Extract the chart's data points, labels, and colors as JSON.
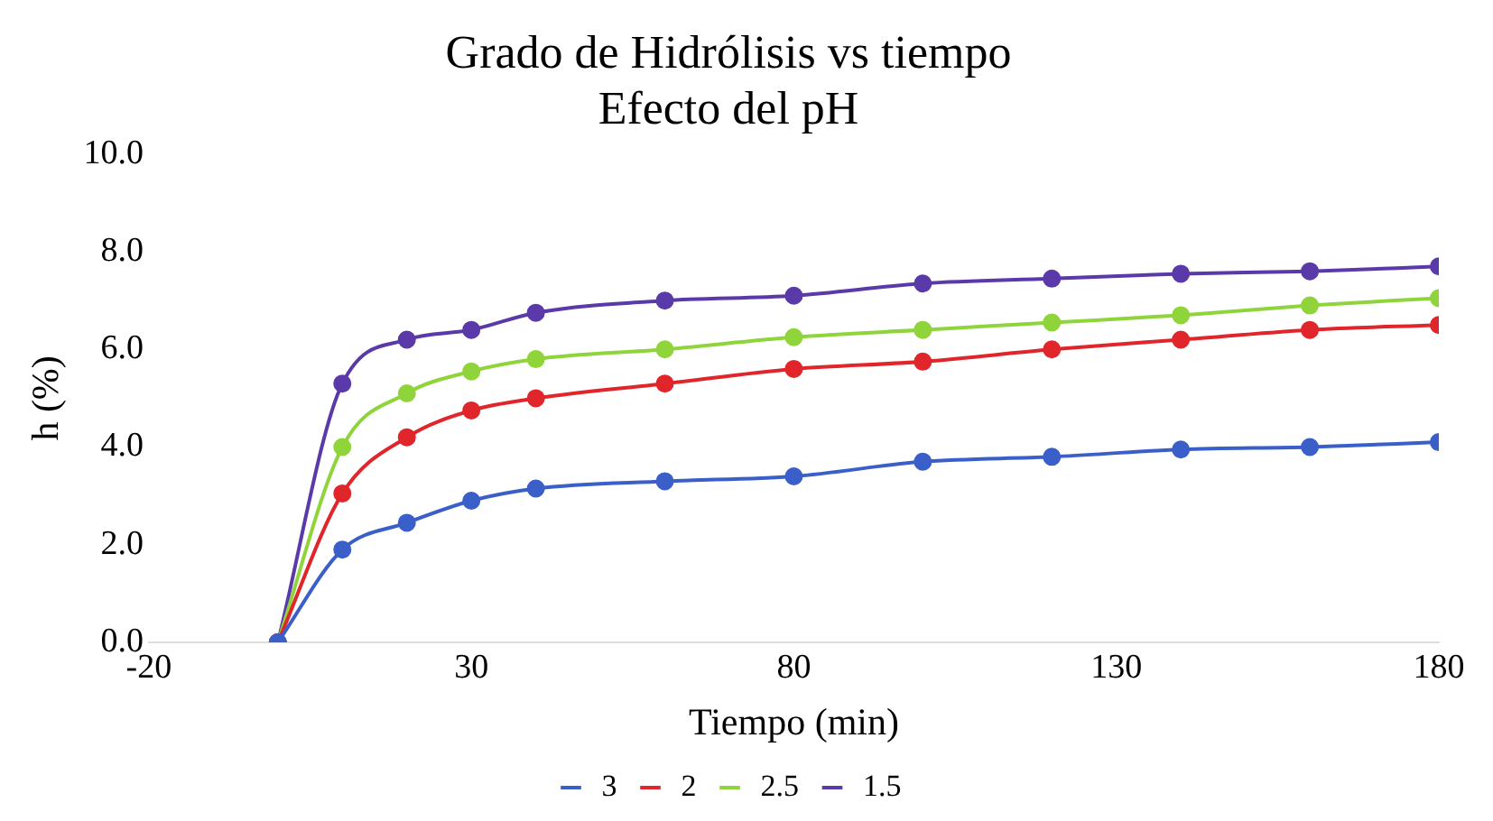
{
  "chart_data": {
    "type": "line",
    "title": "Grado de Hidrólisis vs tiempo",
    "subtitle": "Efecto del pH",
    "xlabel": "Tiempo (min)",
    "ylabel": "h (%)",
    "x": [
      0,
      10,
      20,
      30,
      40,
      60,
      80,
      100,
      120,
      140,
      160,
      180
    ],
    "series": [
      {
        "name": "3",
        "color": "#3a5fc8",
        "values": [
          0,
          1.9,
          2.45,
          2.9,
          3.15,
          3.3,
          3.4,
          3.7,
          3.8,
          3.95,
          4.0,
          4.1
        ]
      },
      {
        "name": "2",
        "color": "#e0262b",
        "values": [
          0,
          3.05,
          4.2,
          4.75,
          5.0,
          5.3,
          5.6,
          5.75,
          6.0,
          6.2,
          6.4,
          6.5
        ]
      },
      {
        "name": "2.5",
        "color": "#8fd43a",
        "values": [
          0,
          4.0,
          5.1,
          5.55,
          5.8,
          6.0,
          6.25,
          6.4,
          6.55,
          6.7,
          6.9,
          7.05
        ]
      },
      {
        "name": "1.5",
        "color": "#5a3aa8",
        "values": [
          0,
          5.3,
          6.2,
          6.4,
          6.75,
          7.0,
          7.1,
          7.35,
          7.45,
          7.55,
          7.6,
          7.7
        ]
      }
    ],
    "xlim": [
      -20,
      180
    ],
    "xticks": [
      -20,
      30,
      80,
      130,
      180
    ],
    "ylim": [
      0,
      10
    ],
    "yticks": [
      {
        "value": 0,
        "label": "0.0"
      },
      {
        "value": 2,
        "label": "2.0"
      },
      {
        "value": 4,
        "label": "4.0"
      },
      {
        "value": 6,
        "label": "6.0"
      },
      {
        "value": 8,
        "label": "8.0"
      },
      {
        "value": 10,
        "label": "10.0"
      }
    ],
    "grid": false,
    "legend": "bottom",
    "marker": "circle",
    "line_style": "solid"
  }
}
